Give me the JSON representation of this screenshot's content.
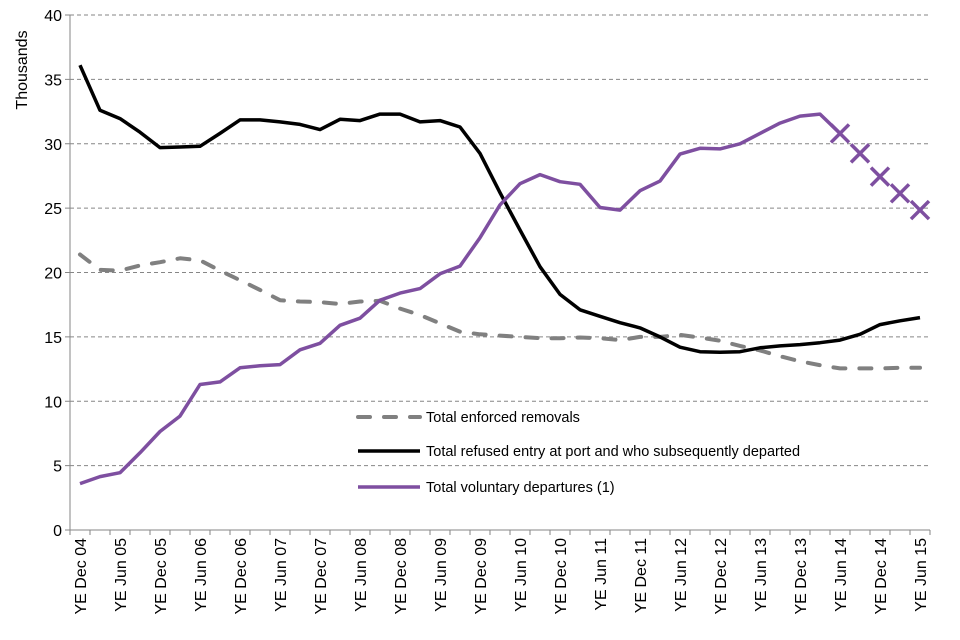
{
  "chart_data": {
    "type": "line",
    "title": "",
    "xlabel": "",
    "ylabel": "Thousands",
    "ylim": [
      0,
      40
    ],
    "yticks": [
      0,
      5,
      10,
      15,
      20,
      25,
      30,
      35,
      40
    ],
    "grid": "horizontal dashed",
    "legend_position": "center-right, inside plot",
    "x": [
      "YE Dec 04",
      "YE Mar 05",
      "YE Jun 05",
      "YE Sep 05",
      "YE Dec 05",
      "YE Mar 06",
      "YE Jun 06",
      "YE Sep 06",
      "YE Dec 06",
      "YE Mar 07",
      "YE Jun 07",
      "YE Sep 07",
      "YE Dec 07",
      "YE Mar 08",
      "YE Jun 08",
      "YE Sep 08",
      "YE Dec 08",
      "YE Mar 09",
      "YE Jun 09",
      "YE Sep 09",
      "YE Dec 09",
      "YE Mar 10",
      "YE Jun 10",
      "YE Sep 10",
      "YE Dec 10",
      "YE Mar 11",
      "YE Jun 11",
      "YE Sep 11",
      "YE Dec 11",
      "YE Mar 12",
      "YE Jun 12",
      "YE Sep 12",
      "YE Dec 12",
      "YE Mar 13",
      "YE Jun 13",
      "YE Sep 13",
      "YE Dec 13",
      "YE Mar 14",
      "YE Jun 14",
      "YE Sep 14",
      "YE Dec 14",
      "YE Mar 15",
      "YE Jun 15"
    ],
    "x_tick_labels": [
      "YE Dec 04",
      "YE Jun 05",
      "YE Dec 05",
      "YE Jun 06",
      "YE Dec 06",
      "YE Jun 07",
      "YE Dec 07",
      "YE Jun 08",
      "YE Dec 08",
      "YE Jun 09",
      "YE Dec 09",
      "YE Jun 10",
      "YE Dec 10",
      "YE Jun 11",
      "YE Dec 11",
      "YE Jun 12",
      "YE Dec 12",
      "YE Jun 13",
      "YE Dec 13",
      "YE Jun 14",
      "YE Dec 14",
      "YE Jun 15"
    ],
    "series": [
      {
        "name": "Total enforced removals",
        "style": "dashed",
        "color": "#808080",
        "values": [
          21.4,
          20.2,
          20.15,
          20.55,
          20.8,
          21.1,
          20.95,
          20.15,
          19.4,
          18.65,
          17.85,
          17.75,
          17.7,
          17.55,
          17.75,
          17.8,
          17.2,
          16.7,
          16.05,
          15.4,
          15.2,
          15.1,
          15.0,
          14.9,
          14.9,
          14.95,
          14.9,
          14.75,
          15.0,
          15.0,
          15.15,
          14.95,
          14.7,
          14.3,
          13.95,
          13.5,
          13.1,
          12.8,
          12.55,
          12.55,
          12.55,
          12.6,
          12.6
        ]
      },
      {
        "name": "Total refused entry at port and who subsequently departed",
        "style": "solid",
        "color": "#000000",
        "values": [
          36.1,
          32.6,
          31.95,
          30.9,
          29.7,
          29.75,
          29.8,
          30.8,
          31.85,
          31.85,
          31.7,
          31.5,
          31.1,
          31.9,
          31.8,
          32.3,
          32.3,
          31.7,
          31.8,
          31.3,
          29.25,
          26.2,
          23.3,
          20.45,
          18.3,
          17.1,
          16.6,
          16.1,
          15.7,
          15.0,
          14.2,
          13.85,
          13.8,
          13.85,
          14.15,
          14.3,
          14.4,
          14.55,
          14.75,
          15.2,
          15.95,
          16.25,
          16.5
        ]
      },
      {
        "name": "Total voluntary departures (1)",
        "style": "solid",
        "color": "#7E4FA0",
        "values": [
          3.6,
          4.15,
          4.45,
          6.0,
          7.65,
          8.85,
          11.3,
          11.5,
          12.6,
          12.75,
          12.85,
          14.0,
          14.5,
          15.9,
          16.45,
          17.85,
          18.4,
          18.75,
          19.9,
          20.5,
          22.7,
          25.25,
          26.9,
          27.6,
          27.05,
          26.85,
          25.05,
          24.85,
          26.35,
          27.1,
          29.2,
          29.65,
          29.6,
          30.0,
          30.8,
          31.6,
          32.15,
          32.3,
          30.8,
          29.25,
          27.45,
          26.15,
          24.85
        ],
        "marker_only_from": "YE Jun 14",
        "marker": "x"
      }
    ],
    "legend": [
      {
        "label": "Total enforced removals",
        "style": "dashed",
        "color": "#808080"
      },
      {
        "label": "Total refused entry at port and who subsequently departed",
        "style": "solid",
        "color": "#000000"
      },
      {
        "label": "Total voluntary departures (1)",
        "style": "solid",
        "color": "#7E4FA0"
      }
    ]
  },
  "colors": {
    "axis": "#868686",
    "grid": "#868686"
  }
}
